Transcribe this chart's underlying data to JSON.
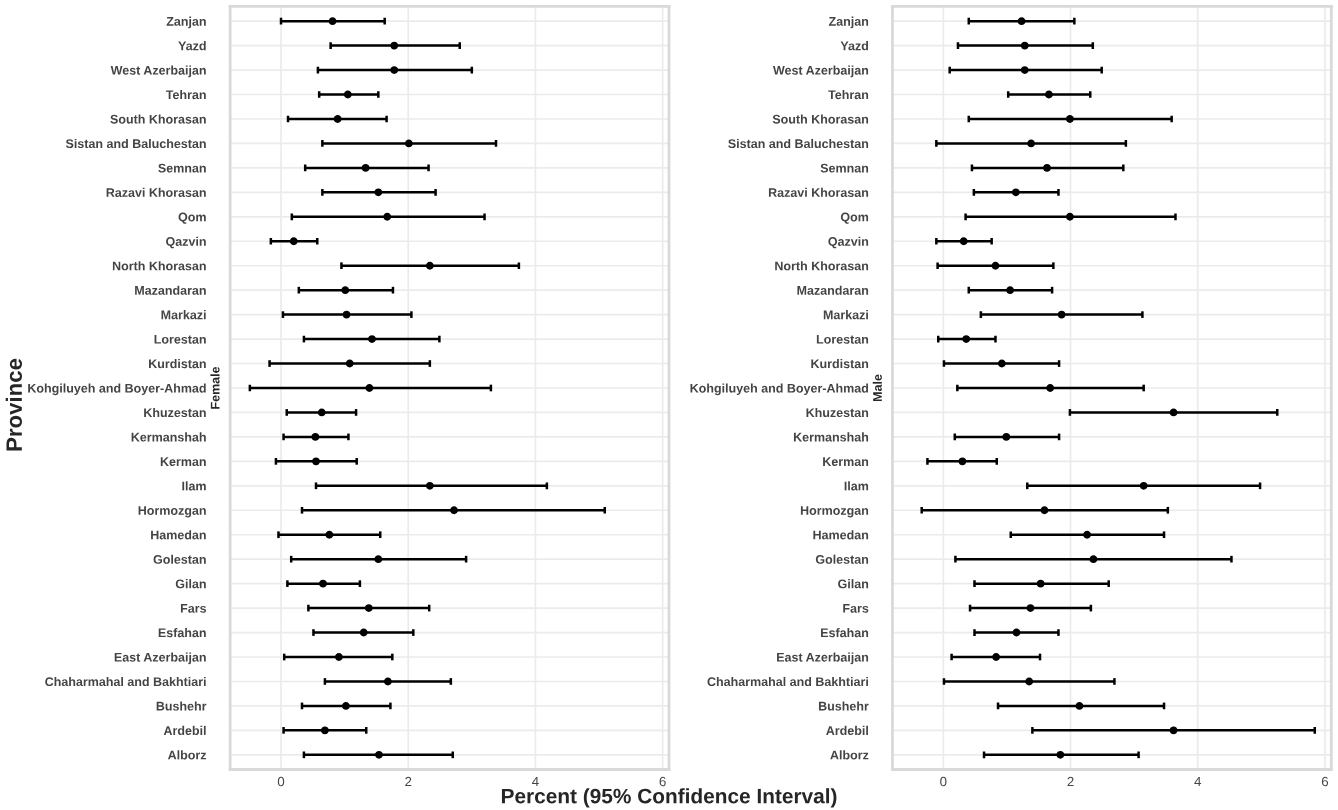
{
  "chart_data": [
    {
      "type": "scatter",
      "orientation": "horizontal",
      "subtitle": "Female",
      "ylabel": "Province",
      "xlabel": "Percent (95% Confidence Interval)",
      "categories": [
        "Zanjan",
        "Yazd",
        "West Azerbaijan",
        "Tehran",
        "South Khorasan",
        "Sistan and Baluchestan",
        "Semnan",
        "Razavi Khorasan",
        "Qom",
        "Qazvin",
        "North Khorasan",
        "Mazandaran",
        "Markazi",
        "Lorestan",
        "Kurdistan",
        "Kohgiluyeh and Boyer-Ahmad",
        "Khuzestan",
        "Kermanshah",
        "Kerman",
        "Ilam",
        "Hormozgan",
        "Hamedan",
        "Golestan",
        "Gilan",
        "Fars",
        "Esfahan",
        "East Azerbaijan",
        "Chaharmahal and Bakhtiari",
        "Bushehr",
        "Ardebil",
        "Alborz"
      ],
      "color": "#000000",
      "marker": "circle",
      "values": [
        0.81,
        1.78,
        1.78,
        1.05,
        0.89,
        2.01,
        1.33,
        1.53,
        1.67,
        0.2,
        2.34,
        1.01,
        1.03,
        1.43,
        1.08,
        1.39,
        0.64,
        0.54,
        0.55,
        2.34,
        2.72,
        0.76,
        1.53,
        0.66,
        1.38,
        1.3,
        0.91,
        1.68,
        1.02,
        0.69,
        1.54
      ],
      "errors": [
        [
          0.0,
          1.63
        ],
        [
          0.78,
          2.81
        ],
        [
          0.58,
          3.0
        ],
        [
          0.6,
          1.53
        ],
        [
          0.11,
          1.66
        ],
        [
          0.65,
          3.38
        ],
        [
          0.38,
          2.32
        ],
        [
          0.65,
          2.43
        ],
        [
          0.17,
          3.2
        ],
        [
          -0.16,
          0.57
        ],
        [
          0.95,
          3.74
        ],
        [
          0.28,
          1.76
        ],
        [
          0.03,
          2.05
        ],
        [
          0.36,
          2.49
        ],
        [
          -0.18,
          2.34
        ],
        [
          -0.49,
          3.3
        ],
        [
          0.09,
          1.18
        ],
        [
          0.04,
          1.06
        ],
        [
          -0.08,
          1.19
        ],
        [
          0.55,
          4.18
        ],
        [
          0.33,
          5.09
        ],
        [
          -0.04,
          1.56
        ],
        [
          0.16,
          2.91
        ],
        [
          0.1,
          1.24
        ],
        [
          0.43,
          2.33
        ],
        [
          0.51,
          2.08
        ],
        [
          0.05,
          1.75
        ],
        [
          0.69,
          2.67
        ],
        [
          0.33,
          1.72
        ],
        [
          0.04,
          1.34
        ],
        [
          0.36,
          2.7
        ]
      ],
      "xlim": [
        -0.8,
        6.1
      ],
      "xticks": [
        0,
        2,
        4,
        6
      ],
      "grid": true
    },
    {
      "type": "scatter",
      "orientation": "horizontal",
      "subtitle": "Male",
      "categories": [
        "Zanjan",
        "Yazd",
        "West Azerbaijan",
        "Tehran",
        "South Khorasan",
        "Sistan and Baluchestan",
        "Semnan",
        "Razavi Khorasan",
        "Qom",
        "Qazvin",
        "North Khorasan",
        "Mazandaran",
        "Markazi",
        "Lorestan",
        "Kurdistan",
        "Kohgiluyeh and Boyer-Ahmad",
        "Khuzestan",
        "Kermanshah",
        "Kerman",
        "Ilam",
        "Hormozgan",
        "Hamedan",
        "Golestan",
        "Gilan",
        "Fars",
        "Esfahan",
        "East Azerbaijan",
        "Chaharmahal and Bakhtiari",
        "Bushehr",
        "Ardebil",
        "Alborz"
      ],
      "color": "#000000",
      "marker": "circle",
      "values": [
        1.23,
        1.28,
        1.28,
        1.66,
        1.99,
        1.38,
        1.63,
        1.14,
        1.99,
        0.32,
        0.82,
        1.05,
        1.86,
        0.36,
        0.92,
        1.68,
        3.62,
        0.99,
        0.3,
        3.15,
        1.59,
        2.26,
        2.36,
        1.53,
        1.37,
        1.15,
        0.83,
        1.35,
        2.14,
        3.62,
        1.84
      ],
      "errors": [
        [
          0.4,
          2.06
        ],
        [
          0.23,
          2.35
        ],
        [
          0.1,
          2.49
        ],
        [
          1.02,
          2.31
        ],
        [
          0.4,
          3.59
        ],
        [
          -0.11,
          2.87
        ],
        [
          0.45,
          2.83
        ],
        [
          0.48,
          1.81
        ],
        [
          0.35,
          3.65
        ],
        [
          -0.11,
          0.76
        ],
        [
          -0.09,
          1.73
        ],
        [
          0.4,
          1.71
        ],
        [
          0.59,
          3.13
        ],
        [
          -0.08,
          0.82
        ],
        [
          0.01,
          1.82
        ],
        [
          0.22,
          3.15
        ],
        [
          1.99,
          5.25
        ],
        [
          0.18,
          1.82
        ],
        [
          -0.25,
          0.84
        ],
        [
          1.32,
          4.98
        ],
        [
          -0.34,
          3.53
        ],
        [
          1.06,
          3.47
        ],
        [
          0.19,
          4.53
        ],
        [
          0.49,
          2.6
        ],
        [
          0.42,
          2.32
        ],
        [
          0.49,
          1.81
        ],
        [
          0.13,
          1.52
        ],
        [
          0.01,
          2.69
        ],
        [
          0.86,
          3.47
        ],
        [
          1.4,
          5.84
        ],
        [
          0.64,
          3.07
        ]
      ],
      "xlim": [
        -0.8,
        6.1
      ],
      "xticks": [
        0,
        2,
        4,
        6
      ],
      "grid": true
    }
  ]
}
